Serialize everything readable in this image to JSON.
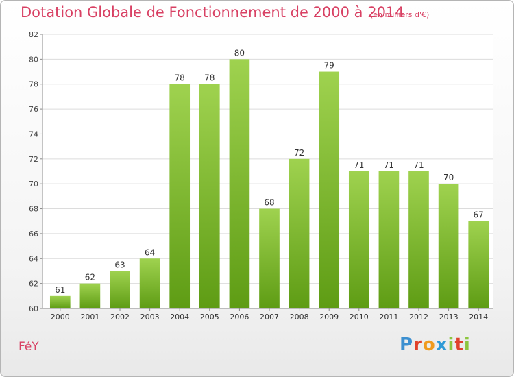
{
  "header": {
    "title": "Dotation Globale de Fonctionnement de 2000 à 2014",
    "unit": "(en milliers d'€)"
  },
  "footer": {
    "commune": "FéY",
    "brand": "Proxiti",
    "brand_colors": [
      "#3c8fd0",
      "#e0412b",
      "#f09a1d",
      "#2f9ad6",
      "#8cc63e",
      "#e0412b",
      "#8cc63e"
    ]
  },
  "colors": {
    "bar_top": "#9fd24f",
    "bar_bottom": "#5e9c14",
    "title": "#d84063",
    "grid": "#dcdcdc"
  },
  "chart_data": {
    "type": "bar",
    "categories": [
      "2000",
      "2001",
      "2002",
      "2003",
      "2004",
      "2005",
      "2006",
      "2007",
      "2008",
      "2009",
      "2010",
      "2011",
      "2012",
      "2013",
      "2014"
    ],
    "values": [
      61,
      62,
      63,
      64,
      78,
      78,
      80,
      68,
      72,
      79,
      71,
      71,
      71,
      70,
      67
    ],
    "ylim": [
      60,
      82
    ],
    "yticks": [
      60,
      62,
      64,
      66,
      68,
      70,
      72,
      74,
      76,
      78,
      80,
      82
    ],
    "grid": true,
    "data_labels": true
  }
}
